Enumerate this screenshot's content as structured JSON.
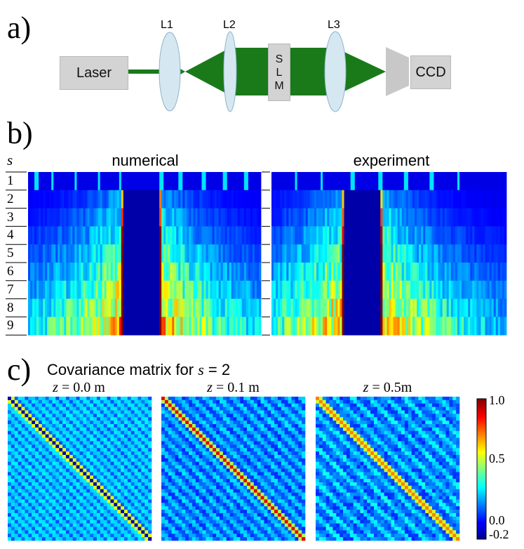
{
  "panels": {
    "a": "a)",
    "b": "b)",
    "c": "c)"
  },
  "setup": {
    "laser": "Laser",
    "lenses": [
      "L1",
      "L2",
      "L3"
    ],
    "slm_letters": [
      "S",
      "L",
      "M"
    ],
    "ccd": "CCD",
    "colors": {
      "beam": "#1a7a1a",
      "lens": "#d5e8f2",
      "box": "#d3d3d3"
    }
  },
  "intensity": {
    "s_label": "s",
    "rows": [
      "1",
      "2",
      "3",
      "4",
      "5",
      "6",
      "7",
      "8",
      "9"
    ],
    "titles": [
      "numerical",
      "experiment"
    ]
  },
  "covariance": {
    "title_prefix": "Covariance matrix  for ",
    "title_var": "s",
    "title_suffix": " = 2",
    "panels": [
      {
        "var": "z",
        "rest": " = 0.0 m"
      },
      {
        "var": "z",
        "rest": " = 0.1 m"
      },
      {
        "var": "z",
        "rest": " = 0.5m"
      }
    ],
    "colorbar": {
      "ticks": [
        "1.0",
        "0.5",
        "0.0",
        "-0.2"
      ],
      "range": [
        -0.2,
        1.0
      ],
      "colormap": "jet"
    }
  }
}
